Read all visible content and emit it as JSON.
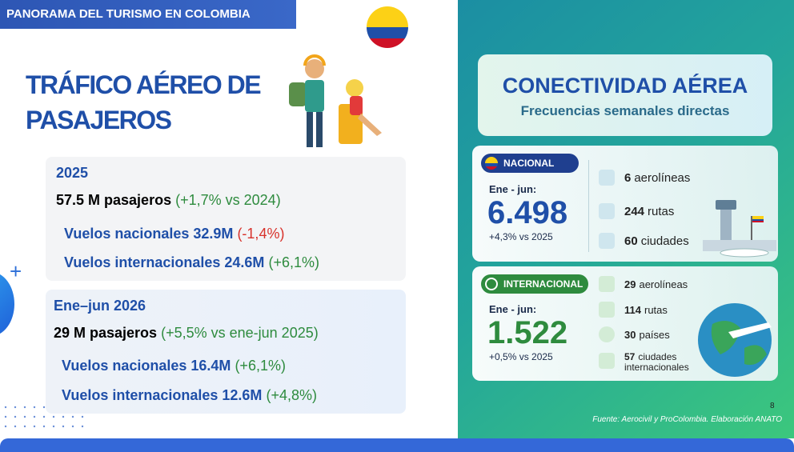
{
  "header": {
    "title": "PANORAMA DEL TURISMO EN COLOMBIA"
  },
  "left": {
    "title": "TRÁFICO AÉREO DE PASAJEROS",
    "blocks": [
      {
        "period": "2025",
        "total": "57.5 M  pasajeros",
        "total_change": "(+1,7% vs 2024)",
        "lines": [
          {
            "label": "Vuelos nacionales 32.9M",
            "change": "(-1,4%)"
          },
          {
            "label": "Vuelos internacionales 24.6M",
            "change": "(+6,1%)"
          }
        ]
      },
      {
        "period": "Ene–jun 2026",
        "total": "29 M pasajeros",
        "total_change": "(+5,5% vs ene-jun 2025)",
        "lines": [
          {
            "label": "Vuelos nacionales 16.4M",
            "change": "(+6,1%)"
          },
          {
            "label": "Vuelos internacionales 12.6M",
            "change": "(+4,8%)"
          }
        ]
      }
    ]
  },
  "right": {
    "title": "CONECTIVIDAD AÉREA",
    "subtitle": "Frecuencias semanales directas",
    "cards": [
      {
        "badge": "NACIONAL",
        "period": "Ene - jun:",
        "value": "6.498",
        "change": "+4,3% vs 2025",
        "stats": [
          {
            "value": "6",
            "label": "aerolíneas"
          },
          {
            "value": "244",
            "label": "rutas"
          },
          {
            "value": "60",
            "label": "ciudades"
          }
        ]
      },
      {
        "badge": "INTERNACIONAL",
        "period": "Ene - jun:",
        "value": "1.522",
        "change": "+0,5% vs 2025",
        "stats": [
          {
            "value": "29",
            "label": "aerolíneas"
          },
          {
            "value": "114",
            "label": "rutas"
          },
          {
            "value": "30",
            "label": "países"
          },
          {
            "value": "57",
            "label": "ciudades internacionales"
          }
        ]
      }
    ]
  },
  "page_number": "8",
  "source": "Fuente: Aerocivil y ProColombia. Elaboración ANATO"
}
